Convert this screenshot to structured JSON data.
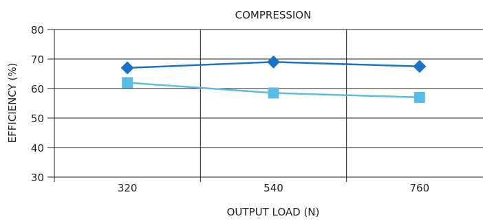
{
  "chart_data": {
    "type": "line",
    "title": "COMPRESSION",
    "xlabel": "OUTPUT LOAD (N)",
    "ylabel": "EFFICIENCY (%)",
    "categories": [
      "320",
      "540",
      "760"
    ],
    "ylim": [
      30,
      80
    ],
    "yticks": [
      30,
      40,
      50,
      60,
      70,
      80
    ],
    "grid": true,
    "series": [
      {
        "values": [
          67,
          69,
          67.5
        ],
        "color": "#1a73c6",
        "marker": "diamond"
      },
      {
        "values": [
          62,
          58.5,
          57
        ],
        "color": "#5bbce8",
        "marker": "square"
      }
    ]
  }
}
